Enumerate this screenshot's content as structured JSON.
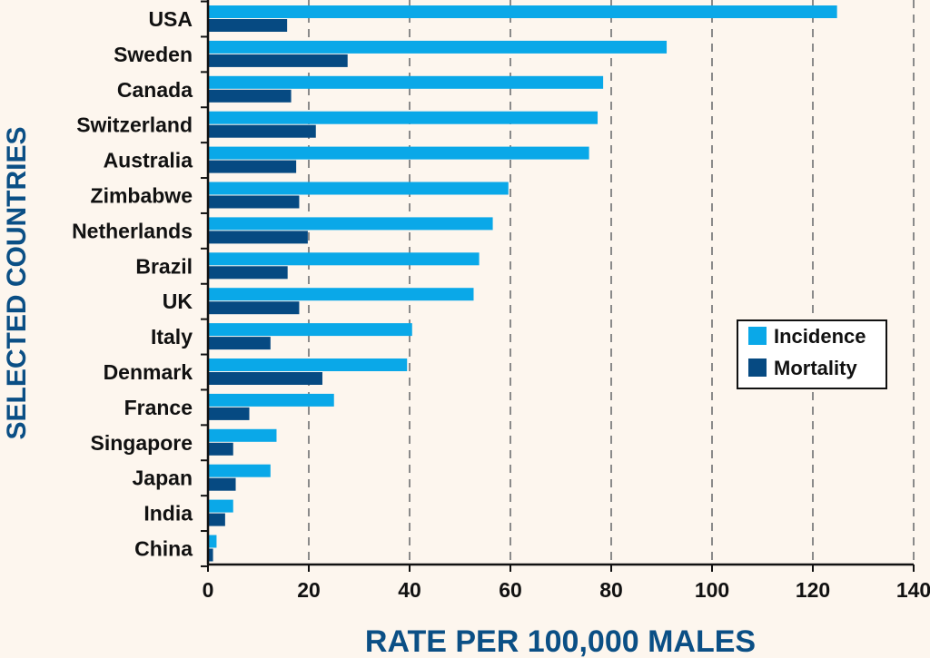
{
  "chart_data": {
    "type": "bar",
    "orientation": "horizontal",
    "title": "",
    "xlabel": "RATE PER 100,000 MALES",
    "ylabel": "SELECTED COUNTRIES",
    "xlim": [
      0,
      140
    ],
    "xticks": [
      0,
      20,
      40,
      60,
      80,
      100,
      120,
      140
    ],
    "grid": "vertical dashed",
    "legend_position": "right",
    "categories": [
      "USA",
      "Sweden",
      "Canada",
      "Switzerland",
      "Australia",
      "Zimbabwe",
      "Netherlands",
      "Brazil",
      "UK",
      "Italy",
      "Denmark",
      "France",
      "Singapore",
      "Japan",
      "India",
      "China"
    ],
    "series": [
      {
        "name": "Incidence",
        "color": "#0aa8e8",
        "values": [
          124.8,
          91.0,
          78.4,
          77.3,
          75.6,
          59.6,
          56.5,
          53.8,
          52.7,
          40.5,
          39.5,
          25.0,
          13.6,
          12.4,
          5.0,
          1.7
        ]
      },
      {
        "name": "Mortality",
        "color": "#064a82",
        "values": [
          15.7,
          27.7,
          16.5,
          21.4,
          17.5,
          18.1,
          19.8,
          15.8,
          18.1,
          12.4,
          22.7,
          8.2,
          5.0,
          5.5,
          3.4,
          1.0
        ]
      }
    ]
  }
}
